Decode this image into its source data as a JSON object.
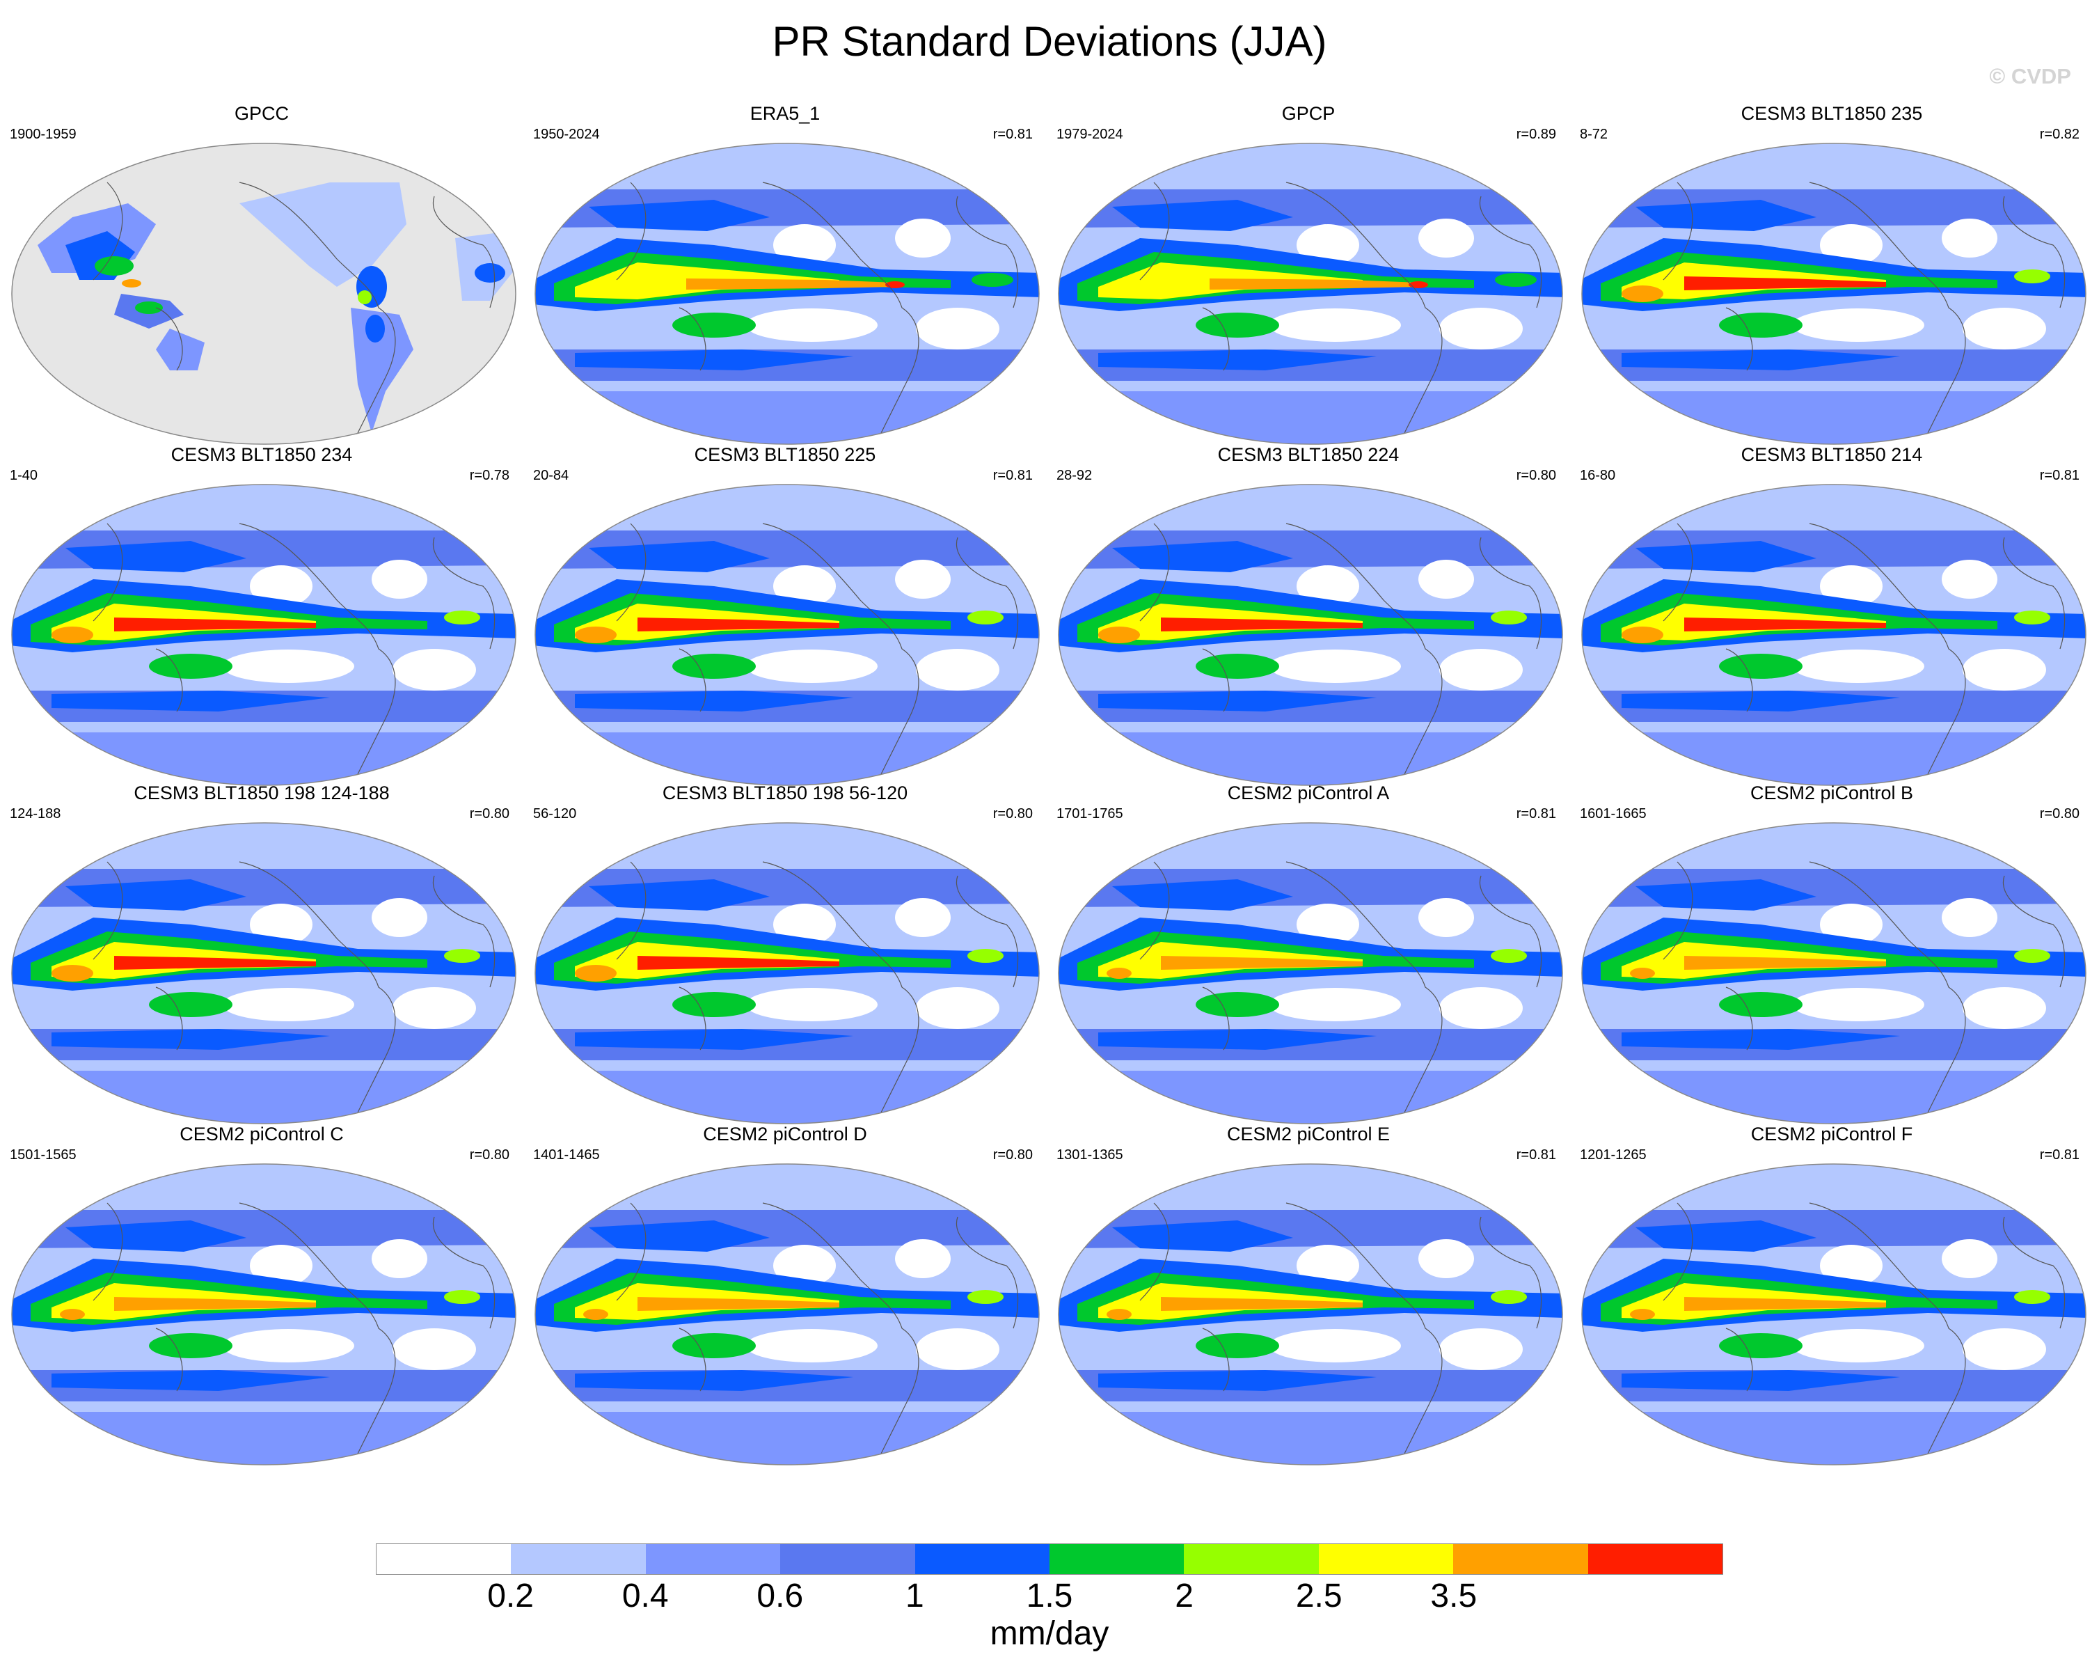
{
  "figure": {
    "title": "PR Standard Deviations (JJA)",
    "watermark": "© CVDP"
  },
  "panels": [
    {
      "title": "GPCC",
      "years": "1900-1959",
      "corr": "",
      "style": "obs_land"
    },
    {
      "title": "ERA5_1",
      "years": "1950-2024",
      "corr": "r=0.81",
      "style": "obs"
    },
    {
      "title": "GPCP",
      "years": "1979-2024",
      "corr": "r=0.89",
      "style": "obs"
    },
    {
      "title": "CESM3 BLT1850 235",
      "years": "8-72",
      "corr": "r=0.82",
      "style": "model_strong"
    },
    {
      "title": "CESM3 BLT1850 234",
      "years": "1-40",
      "corr": "r=0.78",
      "style": "model_strong"
    },
    {
      "title": "CESM3 BLT1850 225",
      "years": "20-84",
      "corr": "r=0.81",
      "style": "model_strong"
    },
    {
      "title": "CESM3 BLT1850 224",
      "years": "28-92",
      "corr": "r=0.80",
      "style": "model_strong"
    },
    {
      "title": "CESM3 BLT1850 214",
      "years": "16-80",
      "corr": "r=0.81",
      "style": "model_strong"
    },
    {
      "title": "CESM3 BLT1850 198 124-188",
      "years": "124-188",
      "corr": "r=0.80",
      "style": "model_strong"
    },
    {
      "title": "CESM3 BLT1850 198 56-120",
      "years": "56-120",
      "corr": "r=0.80",
      "style": "model_strong"
    },
    {
      "title": "CESM2 piControl A",
      "years": "1701-1765",
      "corr": "r=0.81",
      "style": "model"
    },
    {
      "title": "CESM2 piControl B",
      "years": "1601-1665",
      "corr": "r=0.80",
      "style": "model"
    },
    {
      "title": "CESM2 piControl C",
      "years": "1501-1565",
      "corr": "r=0.80",
      "style": "model"
    },
    {
      "title": "CESM2 piControl D",
      "years": "1401-1465",
      "corr": "r=0.80",
      "style": "model"
    },
    {
      "title": "CESM2 piControl E",
      "years": "1301-1365",
      "corr": "r=0.81",
      "style": "model"
    },
    {
      "title": "CESM2 piControl F",
      "years": "1201-1265",
      "corr": "r=0.81",
      "style": "model"
    }
  ],
  "colorbar": {
    "units": "mm/day",
    "levels": [
      "0.2",
      "0.4",
      "0.6",
      "1",
      "1.5",
      "2",
      "2.5",
      "3.5"
    ],
    "colors": [
      "#ffffff",
      "#b4c8ff",
      "#7d96ff",
      "#5a78f0",
      "#0a5aff",
      "#00c82d",
      "#96ff00",
      "#ffff00",
      "#ffa000",
      "#ff1e00"
    ]
  },
  "map_colors": {
    "missing": "#e6e6e6",
    "coastline": "#555555",
    "map_border": "#888888"
  }
}
